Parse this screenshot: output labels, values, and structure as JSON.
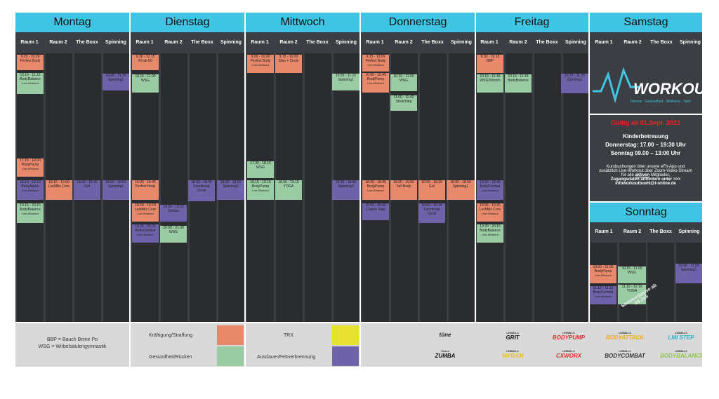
{
  "days": [
    "Montag",
    "Dienstag",
    "Mittwoch",
    "Donnerstag",
    "Freitag",
    "Samstag"
  ],
  "rooms": [
    "Raum 1",
    "Raum 2",
    "The Boxx",
    "Spinning"
  ],
  "sunday_title": "Sonntag",
  "sunday_rooms": [
    "Raum 1",
    "Raum 2",
    "The Boxx",
    "Spinning"
  ],
  "classes": [
    {
      "time": "9.25 - 10.10",
      "name": "Perfect Body",
      "sub": ""
    },
    {
      "time": "10.15 - 11.15",
      "name": "BodyBalance",
      "sub": "Live-Workout"
    },
    {
      "time": "10.25 - 11.15",
      "name": "Spinning1",
      "sub": ""
    },
    {
      "time": "17.15 - 18.00",
      "name": "BodyPump",
      "sub": "Live-Workout"
    },
    {
      "time": "18.10 - 19.10",
      "name": "BodyAttack",
      "sub": "Live-Workout"
    },
    {
      "time": "18.15 - 19.00",
      "name": "LesMills Core",
      "sub": ""
    },
    {
      "time": "18.30 - 18.45",
      "name": "Grit",
      "sub": ""
    },
    {
      "time": "18.00 - 18.50",
      "name": "Spinning1",
      "sub": ""
    },
    {
      "time": "19.15 - 20.15",
      "name": "BodyBalance",
      "sub": "Live-Workout"
    },
    {
      "time": "9.30 - 10.15",
      "name": "Fit ab 50",
      "sub": ""
    },
    {
      "time": "10.15 - 11.00",
      "name": "WSG",
      "sub": ""
    },
    {
      "time": "18.00 - 18.45",
      "name": "Perfect Body",
      "sub": ""
    },
    {
      "time": "18.00 - 18.45",
      "name": "Functional",
      "sub": "Circel"
    },
    {
      "time": "18.00 - 18.50",
      "name": "Spinning3",
      "sub": ""
    },
    {
      "time": "18.50 - 19.20",
      "name": "LesMills Core",
      "sub": "Live-Workout"
    },
    {
      "time": "19.00 - 19.50",
      "name": "Zumba",
      "sub": ""
    },
    {
      "time": "19.25 - 20.25",
      "name": "BodyCombat",
      "sub": "Live-Workout"
    },
    {
      "time": "20.00 - 21.00",
      "name": "WSG",
      "sub": ""
    },
    {
      "time": "9.00 - 10.00",
      "name": "Perfect Body",
      "sub": "Live-Workout"
    },
    {
      "time": "9.15 - 10.00",
      "name": "Step + Circle",
      "sub": ""
    },
    {
      "time": "10.25 - 11.15",
      "name": "Spinning1",
      "sub": ""
    },
    {
      "time": "17.30 - 18.10",
      "name": "WSG",
      "sub": ""
    },
    {
      "time": "18.15 - 19.15",
      "name": "BodyPump",
      "sub": "Live-Workout"
    },
    {
      "time": "18.00 - 19.15",
      "name": "YOGA",
      "sub": ""
    },
    {
      "time": "18.00 - 18.50",
      "name": "Spinning3",
      "sub": ""
    },
    {
      "time": "9.15 - 10.00",
      "name": "Perfect Body",
      "sub": "Live-Workout"
    },
    {
      "time": "10.00 - 10.45",
      "name": "BodyPump",
      "sub": "Live-Workout"
    },
    {
      "time": "10.15 - 11.00",
      "name": "WSG",
      "sub": ""
    },
    {
      "time": "11.00 - 11.40",
      "name": "Stretching",
      "sub": ""
    },
    {
      "time": "18.00 - 18.45",
      "name": "BodyPump",
      "sub": "Live-Workout"
    },
    {
      "time": "18.00 - 19.00",
      "name": "Full Body",
      "sub": ""
    },
    {
      "time": "18.00 - 18.30",
      "name": "Grit",
      "sub": ""
    },
    {
      "time": "18.00 - 18.50",
      "name": "Spinning1",
      "sub": ""
    },
    {
      "time": "19.00 - 20.00",
      "name": "Classic Step",
      "sub": ""
    },
    {
      "time": "18.50 - 19.15",
      "name": "Functional",
      "sub": "Circel"
    },
    {
      "time": "9.30 - 10.15",
      "name": "BBP",
      "sub": ""
    },
    {
      "time": "10.15 - 11.15",
      "name": "WSG/Stretch",
      "sub": ""
    },
    {
      "time": "10.15 - 11.15",
      "name": "BodyBalance",
      "sub": ""
    },
    {
      "time": "10.25 - 11.15",
      "name": "Spinning1",
      "sub": ""
    },
    {
      "time": "18.00 - 18.45",
      "name": "BodyCombat",
      "sub": "Live-Workout"
    },
    {
      "time": "18.55 - 19.25",
      "name": "LesMills Core",
      "sub": "Live-Workout"
    },
    {
      "time": "19.30 - 20.15",
      "name": "BodyBalance",
      "sub": "Live-Workout"
    },
    {
      "time": "10.00 - 11.00",
      "name": "BodyPump",
      "sub": "Live-Workout"
    },
    {
      "time": "10.15 - 11.00",
      "name": "WSG",
      "sub": ""
    },
    {
      "time": "10.00 - 11.00",
      "name": "Spinning1",
      "sub": ""
    },
    {
      "time": "11.10 - 12.10",
      "name": "BodyCombat",
      "sub": "Live-Workout"
    },
    {
      "time": "11.10 - 12.10",
      "name": "YOGA",
      "sub": ""
    }
  ],
  "logo": {
    "word": "WORKOUT",
    "tagline": "Fitness · Gesundheit · Wellness · Tanz"
  },
  "info": {
    "valid": "Gültig ab 01.Sept. 2023",
    "childcare_title": "Kinderbetreuung",
    "childcare_thu": "Donnerstag: 17.00 – 19:30 Uhr",
    "childcare_sun": "Sonntag 09.00 – 13:00 Uhr",
    "booking_1": "Kursbuchungen über unsere eFit-App und",
    "booking_2": "zusätzlich Live-Workout über Zoom-Video-Stream",
    "booking_3a": "für alle ",
    "booking_3b": "aktiven",
    "booking_3c": " Mitglieder,",
    "booking_4": "Zugangsdaten anfordern unter >>>",
    "booking_5": "infoworkoutbuehl@t-online.de"
  },
  "summer_note": "Sommerpause ab 09.Juli",
  "legend": {
    "abbr_1": "BBP = Bauch Beine Po",
    "abbr_2": "WSG = Wirbelsäulengymnastik",
    "cat_1": "Kräftigung/Straffung",
    "cat_2": "Gesundheit/Rücken",
    "cat_3": "TRX",
    "cat_4": "Ausdauer/Fettverbrennung"
  },
  "colors": {
    "kraeftigung": "#e8896b",
    "gesundheit": "#9acca4",
    "trx": "#e6e030",
    "ausdauer": "#6e63a8",
    "header": "#40c4e4"
  },
  "brands": [
    {
      "pre": "",
      "name": "töne"
    },
    {
      "pre": "LESMILLS",
      "name": "GRIT"
    },
    {
      "pre": "LESMILLS",
      "name": "BODYPUMP"
    },
    {
      "pre": "LESMILLS",
      "name": "BODYATTACK"
    },
    {
      "pre": "LESMILLS",
      "name": "LMI STEP"
    },
    {
      "pre": "fitness",
      "name": "ZUMBA"
    },
    {
      "pre": "LESMILLS",
      "name": "SH'BAM"
    },
    {
      "pre": "LESMILLS",
      "name": "CXWORX"
    },
    {
      "pre": "LESMILLS",
      "name": "BODYCOMBAT"
    },
    {
      "pre": "LESMILLS",
      "name": "BODYBALANCE"
    }
  ]
}
